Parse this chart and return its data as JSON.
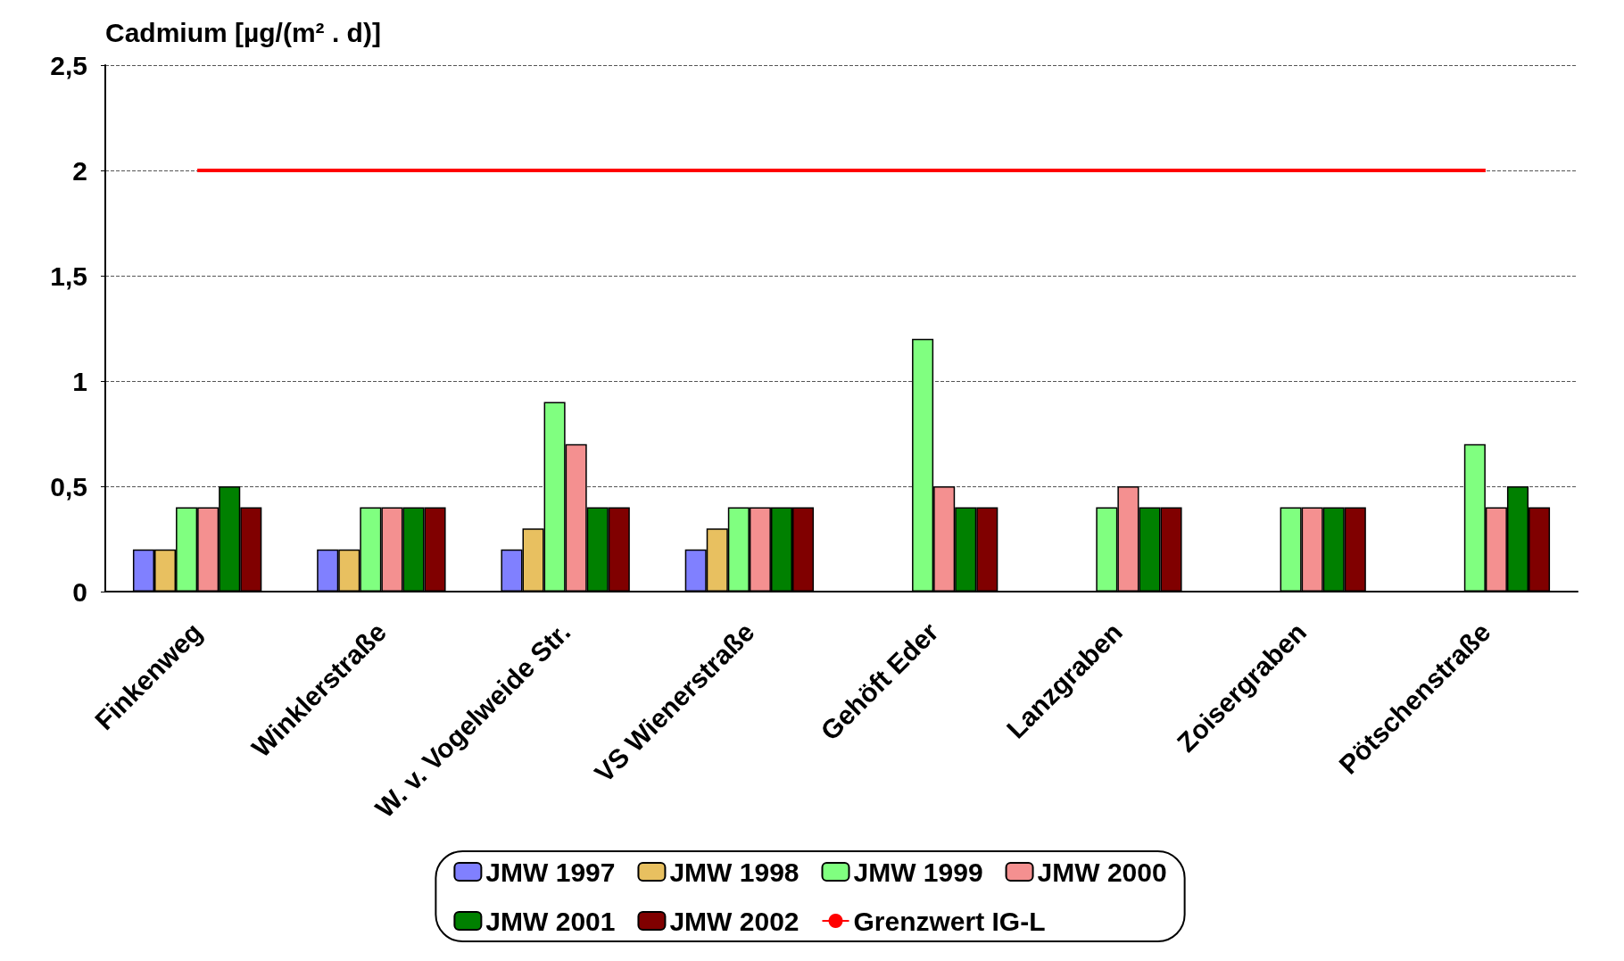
{
  "chart_data": {
    "type": "bar",
    "ylabel": "Cadmium [µg/(m² . d)]",
    "categories": [
      "Finkenweg",
      "Winklerstraße",
      "W. v. Vogelweide Str.",
      "VS Wienerstraße",
      "Gehöft Eder",
      "Lanzgraben",
      "Zoisergraben",
      "Pötschenstraße"
    ],
    "series": [
      {
        "name": "JMW 1997",
        "color": "#8080ff",
        "values": [
          0.2,
          0.2,
          0.2,
          0.2,
          null,
          null,
          null,
          null
        ]
      },
      {
        "name": "JMW 1998",
        "color": "#e8c060",
        "values": [
          0.2,
          0.2,
          0.3,
          0.3,
          null,
          null,
          null,
          null
        ]
      },
      {
        "name": "JMW 1999",
        "color": "#80ff80",
        "values": [
          0.4,
          0.4,
          0.9,
          0.4,
          1.2,
          0.4,
          0.4,
          0.7
        ]
      },
      {
        "name": "JMW 2000",
        "color": "#f49090",
        "values": [
          0.4,
          0.4,
          0.7,
          0.4,
          0.5,
          0.5,
          0.4,
          0.4
        ]
      },
      {
        "name": "JMW 2001",
        "color": "#008000",
        "values": [
          0.5,
          0.4,
          0.4,
          0.4,
          0.4,
          0.4,
          0.4,
          0.5
        ]
      },
      {
        "name": "JMW 2002",
        "color": "#800000",
        "values": [
          0.4,
          0.4,
          0.4,
          0.4,
          0.4,
          0.4,
          0.4,
          0.4
        ]
      },
      {
        "name": "Grenzwert IG-L",
        "type": "line",
        "color": "#ff0000",
        "marker": "none",
        "values": [
          2,
          2,
          2,
          2,
          2,
          2,
          2,
          2
        ]
      }
    ],
    "ylim": [
      0,
      2.5
    ],
    "yticks": [
      0,
      {
        "value": 0.5,
        "label": "0,5"
      },
      1,
      {
        "value": 1.5,
        "label": "1,5"
      },
      2,
      {
        "value": 2.5,
        "label": "2,5"
      }
    ],
    "grid": "y",
    "legend": "bottom"
  }
}
